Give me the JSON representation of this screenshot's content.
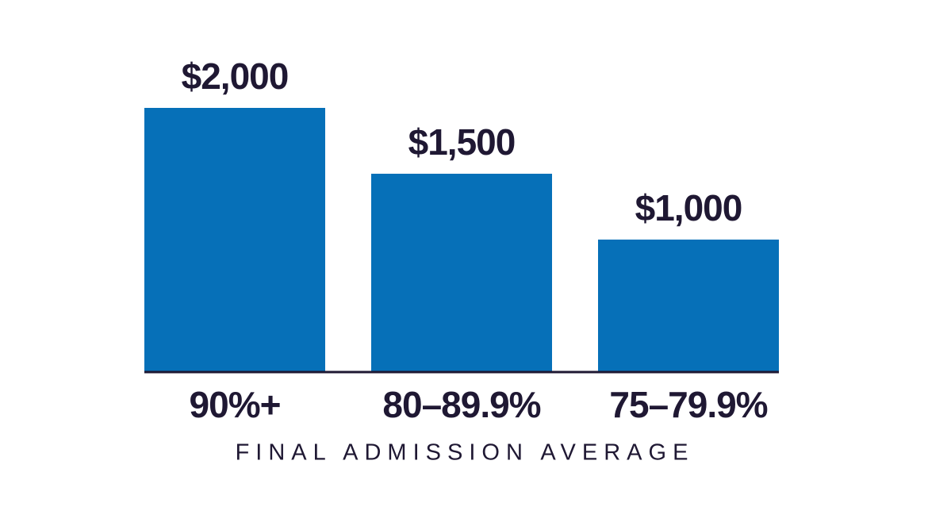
{
  "chart_data": {
    "type": "bar",
    "x_label": "FINAL ADMISSION AVERAGE",
    "categories": [
      "90%+",
      "80–89.9%",
      "75–79.9%"
    ],
    "values": [
      2000,
      1500,
      1000
    ],
    "value_labels": [
      "$2,000",
      "$1,500",
      "$1,000"
    ],
    "color": "#0670b8"
  }
}
